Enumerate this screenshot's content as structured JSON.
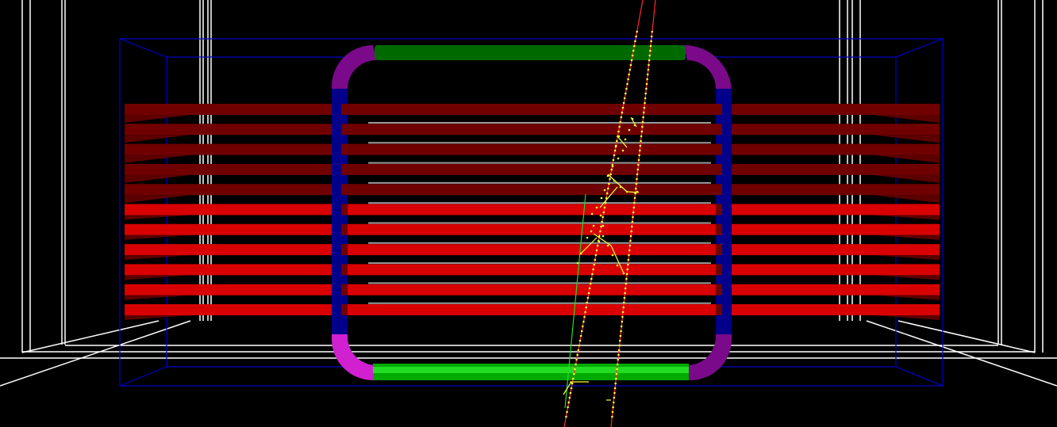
{
  "scene": {
    "background": "#000000",
    "colors": {
      "frame": "#ffffff",
      "outline_box": "#0000cc",
      "plate_dark": "#700000",
      "plate_bright": "#d80000",
      "plate_edge": "#4a0000",
      "plate_shadow": "#5c0000",
      "strip": "#9a9a9a",
      "coil_straight_side": "#00008a",
      "coil_corner": "#7a0a8a",
      "coil_corner_bright": "#d020d0",
      "coil_top": "#006a00",
      "coil_bottom": "#00aa00",
      "coil_bottom_bright": "#22dd22",
      "track_red": "#ff2a2a",
      "track_green": "#22dd22",
      "hits": "#ffff33"
    },
    "plate_count": 11,
    "tracks": [
      "red-track-1",
      "red-track-2",
      "green-track"
    ]
  }
}
